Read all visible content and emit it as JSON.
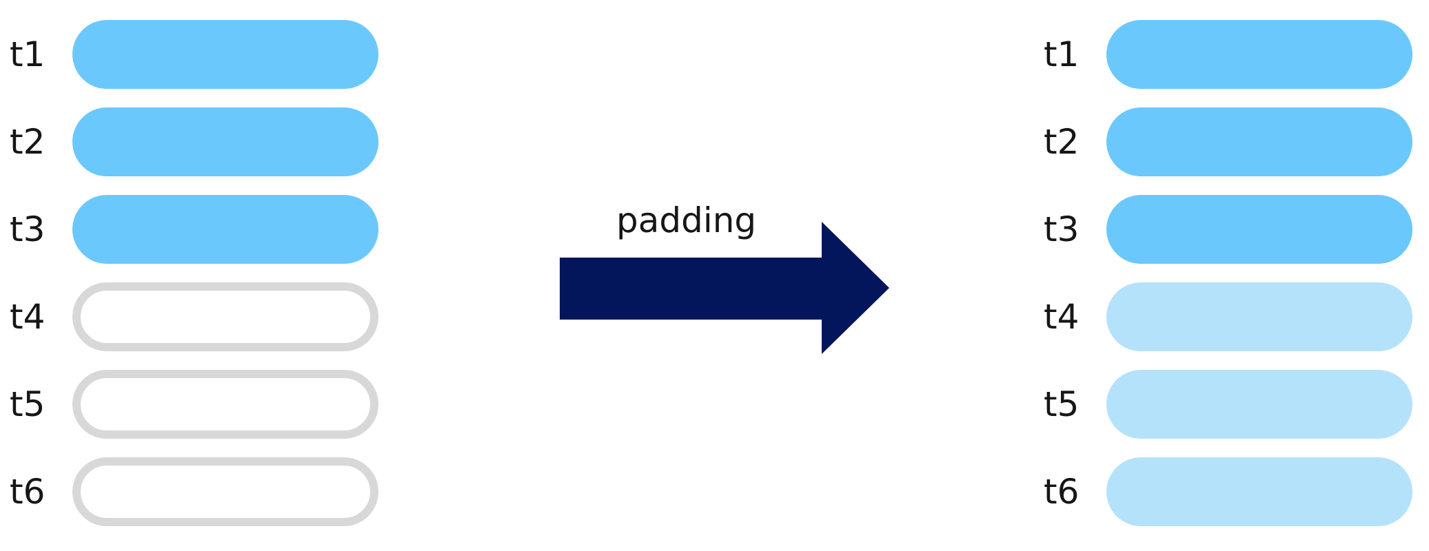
{
  "colors": {
    "filled": "#6bc8fd",
    "padded": "#b5e2fb",
    "empty_border": "#d8d8d8",
    "arrow": "#03165b",
    "text": "#161616"
  },
  "before": {
    "rows": [
      {
        "label": "t1",
        "state": "filled"
      },
      {
        "label": "t2",
        "state": "filled"
      },
      {
        "label": "t3",
        "state": "filled"
      },
      {
        "label": "t4",
        "state": "empty"
      },
      {
        "label": "t5",
        "state": "empty"
      },
      {
        "label": "t6",
        "state": "empty"
      }
    ]
  },
  "arrow": {
    "label": "padding"
  },
  "after": {
    "rows": [
      {
        "label": "t1",
        "state": "filled"
      },
      {
        "label": "t2",
        "state": "filled"
      },
      {
        "label": "t3",
        "state": "filled"
      },
      {
        "label": "t4",
        "state": "padded"
      },
      {
        "label": "t5",
        "state": "padded"
      },
      {
        "label": "t6",
        "state": "padded"
      }
    ]
  }
}
